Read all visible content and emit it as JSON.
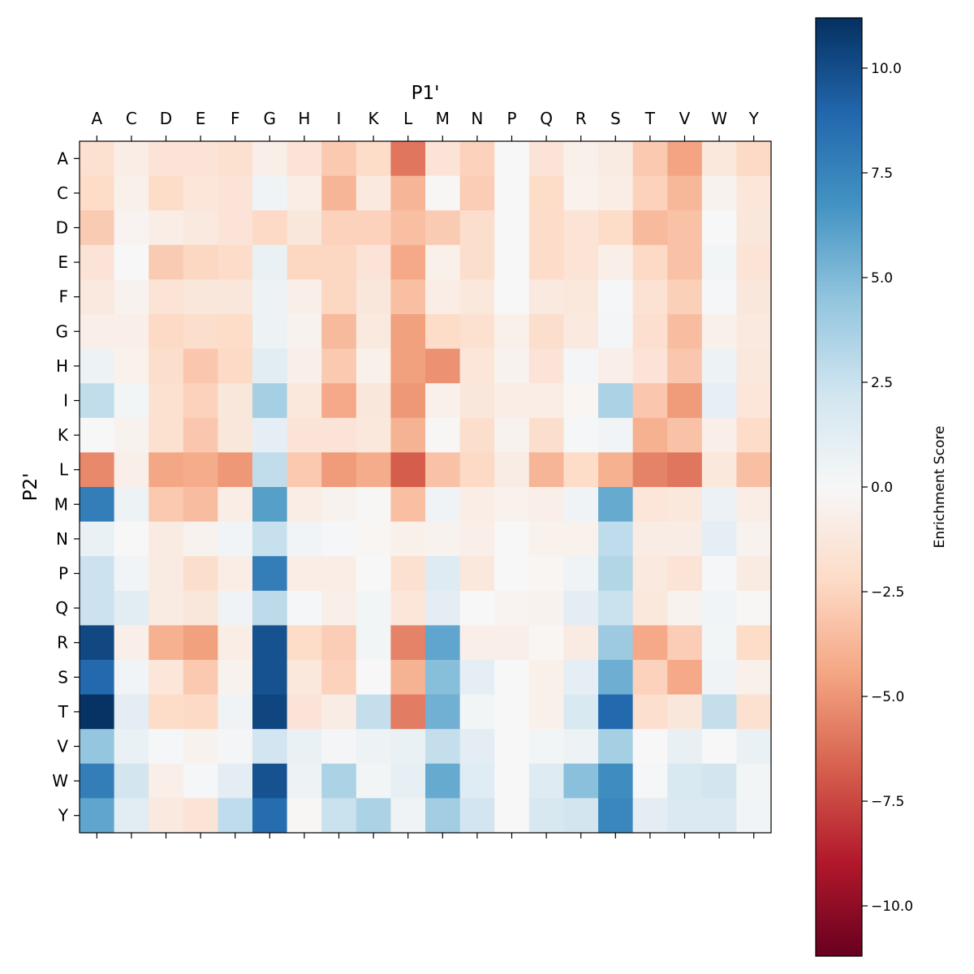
{
  "chart_data": {
    "type": "heatmap",
    "title": "",
    "xlabel": "P1'",
    "ylabel": "P2'",
    "x_categories": [
      "A",
      "C",
      "D",
      "E",
      "F",
      "G",
      "H",
      "I",
      "K",
      "L",
      "M",
      "N",
      "P",
      "Q",
      "R",
      "S",
      "T",
      "V",
      "W",
      "Y"
    ],
    "y_categories": [
      "A",
      "C",
      "D",
      "E",
      "F",
      "G",
      "H",
      "I",
      "K",
      "L",
      "M",
      "N",
      "P",
      "Q",
      "R",
      "S",
      "T",
      "V",
      "W",
      "Y"
    ],
    "colormap": "RdBu",
    "vmin": -11.2,
    "vmax": 11.2,
    "colorbar": {
      "label": "Enrichment Score",
      "ticks": [
        10.0,
        7.5,
        5.0,
        2.5,
        0.0,
        -2.5,
        -5.0,
        -7.5,
        -10.0
      ],
      "tick_labels": [
        "10.0",
        "7.5",
        "5.0",
        "2.5",
        "0.0",
        "−2.5",
        "−5.0",
        "−7.5",
        "−10.0"
      ]
    },
    "values": [
      [
        -1.8,
        -0.8,
        -1.5,
        -1.5,
        -1.8,
        -0.7,
        -1.5,
        -3.0,
        -2.2,
        -6.0,
        -1.5,
        -2.6,
        0.0,
        -1.5,
        -0.6,
        -1.0,
        -3.0,
        -4.5,
        -1.2,
        -2.3
      ],
      [
        -2.2,
        -0.6,
        -2.2,
        -1.4,
        -1.5,
        0.5,
        -0.8,
        -3.8,
        -1.1,
        -3.8,
        -0.1,
        -2.8,
        0.0,
        -2.2,
        -0.5,
        -0.8,
        -2.6,
        -3.7,
        -0.4,
        -1.4
      ],
      [
        -2.9,
        -0.3,
        -0.8,
        -1.1,
        -1.5,
        -2.3,
        -1.3,
        -2.6,
        -2.6,
        -3.4,
        -2.9,
        -2.0,
        0.0,
        -2.1,
        -1.6,
        -2.2,
        -3.6,
        -3.3,
        0.0,
        -1.3
      ],
      [
        -1.5,
        0.0,
        -2.9,
        -2.4,
        -2.1,
        0.8,
        -2.4,
        -2.4,
        -1.5,
        -4.3,
        -0.6,
        -2.0,
        0.0,
        -2.1,
        -1.6,
        -0.7,
        -2.3,
        -3.3,
        0.3,
        -1.6
      ],
      [
        -1.1,
        -0.4,
        -1.6,
        -1.3,
        -1.3,
        0.6,
        -0.7,
        -2.4,
        -1.3,
        -3.4,
        -0.8,
        -1.2,
        0.0,
        -1.1,
        -1.2,
        0.1,
        -1.7,
        -2.7,
        0.1,
        -1.3
      ],
      [
        -0.7,
        -0.7,
        -2.3,
        -2.0,
        -2.2,
        0.6,
        -0.4,
        -3.6,
        -1.1,
        -4.6,
        -2.2,
        -1.8,
        -0.6,
        -2.0,
        -1.1,
        0.2,
        -1.9,
        -3.5,
        -0.6,
        -1.1
      ],
      [
        0.6,
        -0.5,
        -2.0,
        -3.1,
        -2.3,
        1.3,
        -0.7,
        -3.0,
        -0.6,
        -4.6,
        -5.1,
        -1.4,
        -0.4,
        -1.5,
        0.2,
        -0.7,
        -1.5,
        -3.1,
        0.6,
        -1.2
      ],
      [
        2.8,
        0.3,
        -1.8,
        -2.6,
        -1.3,
        3.8,
        -1.2,
        -4.3,
        -1.3,
        -4.9,
        -0.6,
        -1.3,
        -0.8,
        -0.8,
        -0.2,
        3.6,
        -3.1,
        -4.8,
        1.0,
        -1.4
      ],
      [
        0.0,
        -0.4,
        -1.8,
        -3.1,
        -1.3,
        1.1,
        -1.5,
        -1.5,
        -1.2,
        -3.9,
        -0.1,
        -2.0,
        -0.4,
        -2.0,
        0.1,
        0.4,
        -4.0,
        -3.3,
        -0.7,
        -2.1
      ],
      [
        -5.4,
        -0.7,
        -4.4,
        -4.2,
        -4.9,
        2.8,
        -3.0,
        -4.8,
        -4.2,
        -6.8,
        -3.3,
        -2.3,
        -0.9,
        -3.8,
        -2.2,
        -4.0,
        -5.6,
        -6.0,
        -1.2,
        -3.4
      ],
      [
        7.8,
        0.6,
        -3.0,
        -3.5,
        -0.8,
        6.2,
        -0.8,
        -0.4,
        -0.1,
        -3.4,
        0.5,
        -0.8,
        -0.5,
        -0.7,
        0.5,
        5.7,
        -1.4,
        -1.2,
        0.7,
        -0.8
      ],
      [
        0.8,
        0.0,
        -1.0,
        -0.4,
        0.4,
        2.6,
        0.4,
        0.1,
        -0.2,
        -0.6,
        -0.4,
        -0.7,
        0.0,
        -0.5,
        -0.5,
        2.9,
        -0.9,
        -0.9,
        1.1,
        -0.4
      ],
      [
        2.4,
        0.4,
        -1.0,
        -2.0,
        -0.8,
        7.8,
        -0.8,
        -0.8,
        0.0,
        -1.8,
        1.5,
        -1.2,
        0.0,
        -0.2,
        0.5,
        3.3,
        -1.1,
        -1.6,
        0.1,
        -1.0
      ],
      [
        2.4,
        1.3,
        -1.0,
        -1.3,
        0.5,
        3.0,
        0.1,
        -0.7,
        0.3,
        -1.4,
        1.2,
        0.0,
        -0.3,
        -0.4,
        1.2,
        2.5,
        -1.2,
        -0.4,
        0.4,
        -0.1
      ],
      [
        10.2,
        -0.7,
        -4.0,
        -4.6,
        -0.8,
        9.8,
        -2.2,
        -2.8,
        0.3,
        -5.6,
        5.9,
        -0.7,
        -0.7,
        -0.2,
        -1.0,
        4.1,
        -4.3,
        -2.8,
        0.3,
        -2.2
      ],
      [
        8.8,
        0.4,
        -1.4,
        -3.0,
        -0.4,
        9.8,
        -1.2,
        -2.6,
        0.0,
        -3.9,
        4.8,
        1.1,
        0.0,
        -0.6,
        1.1,
        5.5,
        -2.6,
        -4.3,
        0.5,
        -0.6
      ],
      [
        11.1,
        1.2,
        -2.2,
        -2.3,
        0.5,
        10.3,
        -1.5,
        -0.9,
        2.7,
        -5.8,
        5.4,
        0.3,
        0.0,
        -0.6,
        1.8,
        8.8,
        -1.9,
        -1.3,
        2.7,
        -1.8
      ],
      [
        4.4,
        0.8,
        0.1,
        -0.4,
        0.2,
        2.2,
        0.8,
        0.2,
        0.6,
        0.8,
        2.7,
        1.2,
        0.0,
        0.3,
        0.6,
        3.8,
        0.0,
        0.9,
        0.0,
        0.8
      ],
      [
        7.8,
        2.1,
        -0.7,
        0.1,
        1.2,
        9.8,
        0.6,
        3.6,
        0.3,
        1.0,
        5.7,
        1.4,
        0.0,
        1.5,
        4.7,
        7.0,
        0.1,
        1.8,
        2.1,
        0.3
      ],
      [
        5.9,
        1.3,
        -1.1,
        -1.6,
        2.9,
        8.6,
        -0.1,
        2.5,
        3.6,
        0.5,
        3.9,
        2.2,
        0.0,
        1.9,
        2.1,
        7.3,
        1.2,
        1.7,
        1.7,
        0.4
      ]
    ],
    "grid": false
  }
}
